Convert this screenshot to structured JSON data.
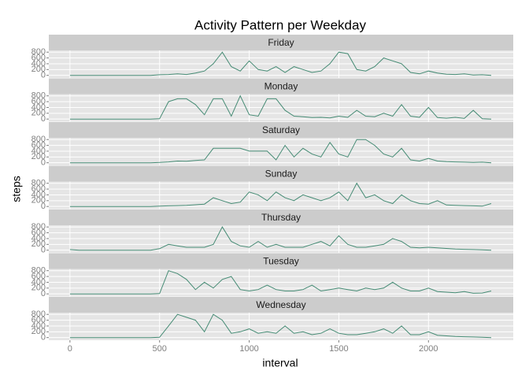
{
  "chart_data": {
    "type": "line",
    "title": "Activity Pattern per Weekday",
    "x_label": "interval",
    "y_label": "steps",
    "x": [
      0,
      50,
      100,
      150,
      200,
      250,
      300,
      350,
      400,
      450,
      500,
      550,
      600,
      650,
      700,
      750,
      800,
      850,
      900,
      950,
      1000,
      1050,
      1100,
      1150,
      1200,
      1250,
      1300,
      1350,
      1400,
      1450,
      1500,
      1550,
      1600,
      1650,
      1700,
      1750,
      1800,
      1850,
      1900,
      1950,
      2000,
      2050,
      2100,
      2150,
      2200,
      2250,
      2300,
      2350
    ],
    "xlim": [
      -118,
      2473
    ],
    "xticks": [
      0,
      500,
      1000,
      1500,
      2000
    ],
    "ylim": [
      -90,
      860
    ],
    "yticks": [
      0,
      200,
      400,
      600,
      800
    ],
    "grid": true,
    "facets": true,
    "series": [
      {
        "name": "Friday",
        "color": "#458b74",
        "values": [
          0,
          0,
          0,
          0,
          0,
          0,
          0,
          0,
          0,
          0,
          20,
          30,
          50,
          30,
          80,
          150,
          400,
          800,
          300,
          150,
          500,
          200,
          150,
          300,
          100,
          300,
          200,
          100,
          150,
          400,
          800,
          750,
          200,
          150,
          300,
          600,
          500,
          400,
          100,
          50,
          150,
          80,
          40,
          30,
          50,
          10,
          20,
          0
        ]
      },
      {
        "name": "Monday",
        "color": "#458b74",
        "values": [
          0,
          0,
          0,
          0,
          0,
          0,
          0,
          0,
          0,
          0,
          10,
          600,
          700,
          700,
          500,
          150,
          700,
          700,
          100,
          800,
          150,
          100,
          700,
          700,
          300,
          100,
          80,
          50,
          60,
          40,
          100,
          60,
          300,
          100,
          80,
          200,
          100,
          500,
          100,
          60,
          400,
          50,
          30,
          60,
          20,
          300,
          10,
          0
        ]
      },
      {
        "name": "Saturday",
        "color": "#458b74",
        "values": [
          0,
          0,
          0,
          0,
          0,
          0,
          0,
          0,
          0,
          0,
          10,
          30,
          60,
          50,
          80,
          100,
          500,
          500,
          500,
          500,
          400,
          400,
          400,
          100,
          600,
          200,
          500,
          300,
          200,
          700,
          300,
          200,
          800,
          800,
          600,
          300,
          200,
          500,
          100,
          60,
          150,
          60,
          40,
          30,
          20,
          10,
          20,
          0
        ]
      },
      {
        "name": "Sunday",
        "color": "#458b74",
        "values": [
          0,
          0,
          0,
          0,
          0,
          0,
          0,
          0,
          0,
          0,
          10,
          20,
          30,
          40,
          60,
          80,
          300,
          200,
          100,
          150,
          500,
          400,
          200,
          500,
          300,
          200,
          400,
          300,
          200,
          300,
          500,
          200,
          800,
          300,
          400,
          200,
          100,
          400,
          200,
          100,
          80,
          200,
          50,
          40,
          30,
          20,
          10,
          100
        ]
      },
      {
        "name": "Thursday",
        "color": "#458b74",
        "values": [
          20,
          0,
          0,
          0,
          0,
          0,
          0,
          0,
          0,
          0,
          50,
          200,
          150,
          100,
          100,
          100,
          200,
          800,
          300,
          150,
          100,
          300,
          100,
          200,
          100,
          100,
          100,
          200,
          300,
          150,
          500,
          200,
          100,
          100,
          150,
          200,
          400,
          300,
          100,
          80,
          100,
          80,
          60,
          40,
          30,
          20,
          10,
          0
        ]
      },
      {
        "name": "Tuesday",
        "color": "#458b74",
        "values": [
          0,
          0,
          0,
          0,
          0,
          0,
          0,
          0,
          0,
          0,
          10,
          800,
          700,
          500,
          150,
          400,
          200,
          500,
          600,
          150,
          100,
          150,
          300,
          150,
          100,
          100,
          150,
          300,
          100,
          150,
          200,
          150,
          100,
          200,
          150,
          200,
          400,
          200,
          100,
          100,
          200,
          80,
          60,
          40,
          80,
          20,
          30,
          100
        ]
      },
      {
        "name": "Wednesday",
        "color": "#458b74",
        "values": [
          0,
          0,
          0,
          0,
          0,
          0,
          0,
          0,
          0,
          0,
          10,
          400,
          800,
          700,
          600,
          200,
          800,
          600,
          150,
          200,
          300,
          150,
          200,
          150,
          400,
          150,
          200,
          100,
          150,
          300,
          150,
          100,
          100,
          150,
          200,
          300,
          150,
          400,
          100,
          100,
          200,
          80,
          60,
          40,
          30,
          20,
          10,
          0
        ]
      }
    ]
  }
}
